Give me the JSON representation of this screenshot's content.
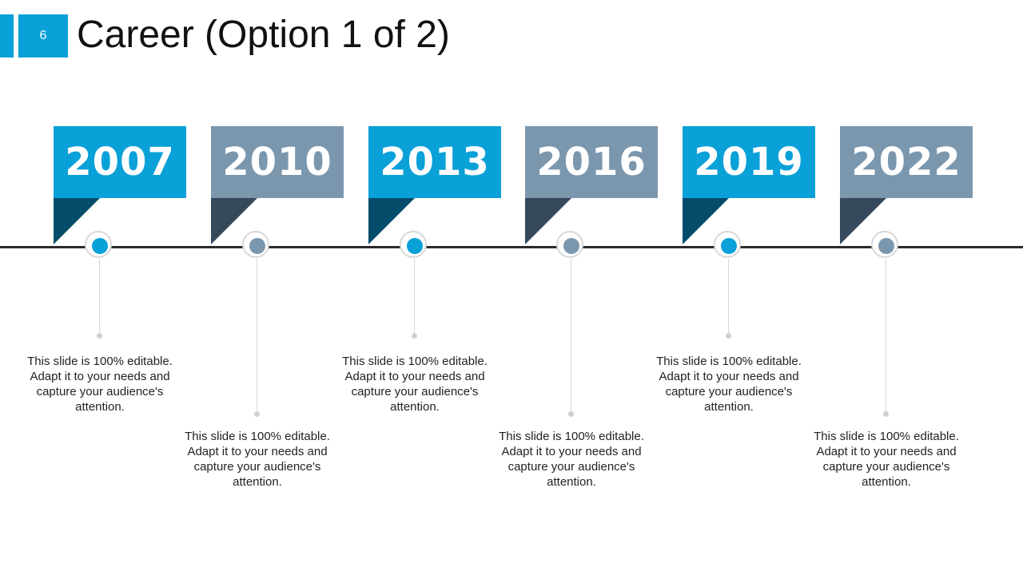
{
  "slide": {
    "number": "6",
    "title": "Career (Option 1 of 2)"
  },
  "colors": {
    "blue": "#0aa0d8",
    "blue_dark": "#034d6b",
    "gray": "#7b97ae",
    "gray_dark": "#36495d",
    "line": "#2b2b2b"
  },
  "milestones": [
    {
      "year": "2007",
      "text": "This slide is 100% editable. Adapt it to your needs and capture your audience's attention."
    },
    {
      "year": "2010",
      "text": "This slide is 100% editable. Adapt it to your needs and capture your audience's attention."
    },
    {
      "year": "2013",
      "text": "This slide is 100% editable. Adapt it to your needs and capture your audience's attention."
    },
    {
      "year": "2016",
      "text": "This slide is 100% editable. Adapt it to your needs and capture your audience's attention."
    },
    {
      "year": "2019",
      "text": "This slide is 100% editable. Adapt it to your needs and capture your audience's attention."
    },
    {
      "year": "2022",
      "text": "This slide is 100% editable. Adapt it to your needs and capture your audience's attention."
    }
  ]
}
